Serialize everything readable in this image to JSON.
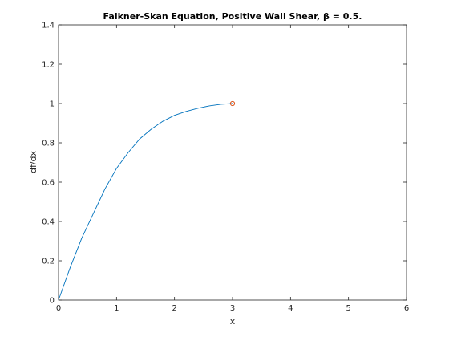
{
  "chart_data": {
    "type": "line",
    "title": "Falkner-Skan Equation, Positive Wall Shear, β = 0.5.",
    "xlabel": "x",
    "ylabel": "df/dx",
    "xlim": [
      0,
      6
    ],
    "ylim": [
      0,
      1.4
    ],
    "xticks": [
      "0",
      "1",
      "2",
      "3",
      "4",
      "5",
      "6"
    ],
    "yticks": [
      "0",
      "0.2",
      "0.4",
      "0.6",
      "0.8",
      "1",
      "1.2",
      "1.4"
    ],
    "grid": false,
    "series": [
      {
        "color": "#0072bd",
        "x": [
          0,
          0.2,
          0.4,
          0.6,
          0.8,
          1.0,
          1.2,
          1.4,
          1.6,
          1.8,
          2.0,
          2.2,
          2.4,
          2.6,
          2.8,
          3.0
        ],
        "y": [
          0,
          0.165,
          0.315,
          0.44,
          0.565,
          0.67,
          0.75,
          0.82,
          0.87,
          0.91,
          0.94,
          0.96,
          0.976,
          0.988,
          0.996,
          1.0
        ]
      }
    ],
    "markers": [
      {
        "x": 3.0,
        "y": 1.0,
        "shape": "circle",
        "color": "#d95319"
      }
    ]
  }
}
